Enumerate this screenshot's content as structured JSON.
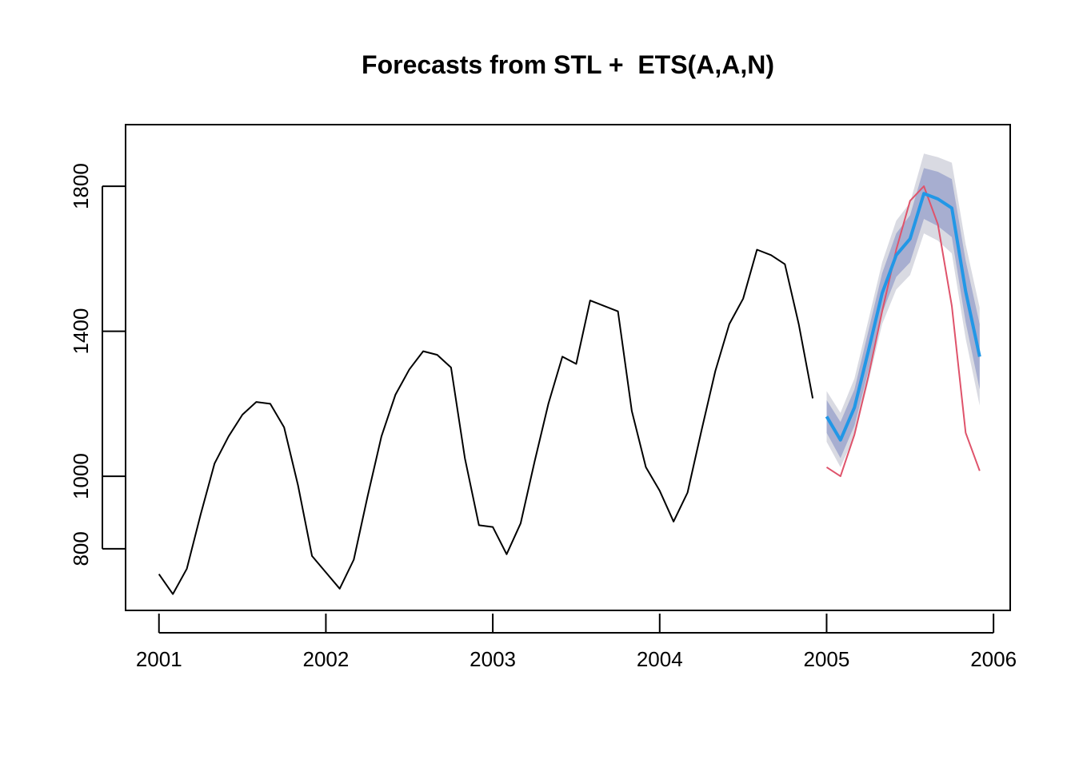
{
  "chart_data": {
    "type": "line",
    "title": "Forecasts from STL +  ETS(A,A,N)",
    "xlabel": "",
    "ylabel": "",
    "xlim": [
      2000.8,
      2006.1
    ],
    "ylim": [
      630,
      1970
    ],
    "x_ticks": [
      2001,
      2002,
      2003,
      2004,
      2005,
      2006
    ],
    "y_ticks": [
      800,
      1000,
      1400,
      1800
    ],
    "grid": false,
    "legend": "none",
    "colors": {
      "history": "#000000",
      "forecast": "#2297E6",
      "actual": "#DF536B",
      "band80": "#A7AED0",
      "band95": "#D9DAE2"
    },
    "series": [
      {
        "role": "history",
        "x": [
          2001.0,
          2001.083,
          2001.167,
          2001.25,
          2001.333,
          2001.417,
          2001.5,
          2001.583,
          2001.667,
          2001.75,
          2001.833,
          2001.917,
          2002.0,
          2002.083,
          2002.167,
          2002.25,
          2002.333,
          2002.417,
          2002.5,
          2002.583,
          2002.667,
          2002.75,
          2002.833,
          2002.917,
          2003.0,
          2003.083,
          2003.167,
          2003.25,
          2003.333,
          2003.417,
          2003.5,
          2003.583,
          2003.667,
          2003.75,
          2003.833,
          2003.917,
          2004.0,
          2004.083,
          2004.167,
          2004.25,
          2004.333,
          2004.417,
          2004.5,
          2004.583,
          2004.667,
          2004.75,
          2004.833,
          2004.917
        ],
        "values": [
          730,
          675,
          745,
          895,
          1035,
          1110,
          1170,
          1205,
          1200,
          1135,
          975,
          780,
          735,
          690,
          770,
          945,
          1110,
          1225,
          1295,
          1345,
          1335,
          1300,
          1050,
          865,
          860,
          785,
          870,
          1040,
          1200,
          1330,
          1310,
          1485,
          1470,
          1455,
          1180,
          1025,
          960,
          875,
          955,
          1125,
          1290,
          1420,
          1490,
          1625,
          1610,
          1585,
          1420,
          1215
        ]
      },
      {
        "role": "actual",
        "x": [
          2005.0,
          2005.083,
          2005.167,
          2005.25,
          2005.333,
          2005.417,
          2005.5,
          2005.583,
          2005.667,
          2005.75,
          2005.833,
          2005.917
        ],
        "values": [
          1025,
          1000,
          1115,
          1275,
          1455,
          1625,
          1760,
          1800,
          1695,
          1470,
          1120,
          1015
        ]
      },
      {
        "role": "forecast",
        "x": [
          2005.0,
          2005.083,
          2005.167,
          2005.25,
          2005.333,
          2005.417,
          2005.5,
          2005.583,
          2005.667,
          2005.75,
          2005.833,
          2005.917
        ],
        "values": [
          1165,
          1100,
          1190,
          1345,
          1505,
          1610,
          1655,
          1780,
          1765,
          1740,
          1510,
          1330
        ],
        "lo80": [
          1120,
          1050,
          1140,
          1290,
          1450,
          1550,
          1590,
          1710,
          1690,
          1660,
          1425,
          1240
        ],
        "hi80": [
          1210,
          1150,
          1240,
          1400,
          1560,
          1670,
          1720,
          1850,
          1840,
          1820,
          1595,
          1420
        ],
        "lo95": [
          1095,
          1025,
          1110,
          1260,
          1420,
          1515,
          1555,
          1670,
          1650,
          1615,
          1380,
          1195
        ],
        "hi95": [
          1235,
          1175,
          1270,
          1430,
          1590,
          1705,
          1755,
          1890,
          1880,
          1865,
          1640,
          1465
        ]
      }
    ]
  }
}
